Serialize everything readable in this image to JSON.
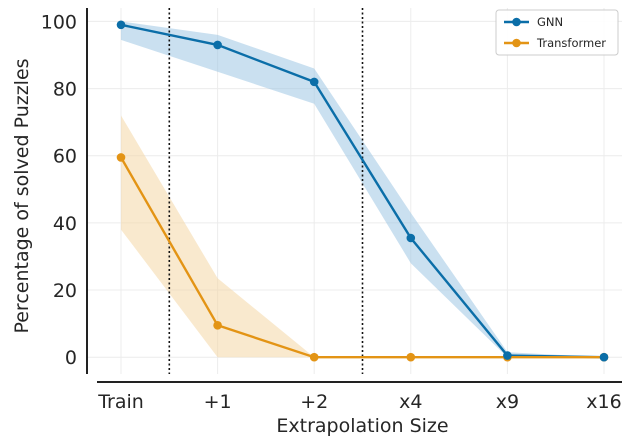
{
  "chart_data": {
    "type": "line",
    "categories": [
      "Train",
      "+1",
      "+2",
      "x4",
      "x9",
      "x16"
    ],
    "xlabel": "Extrapolation Size",
    "ylabel": "Percentage of solved Puzzles",
    "ylim": [
      -5,
      104
    ],
    "yticks": [
      0,
      20,
      40,
      60,
      80,
      100
    ],
    "grid": true,
    "legend_position": "top-right",
    "vlines_at": [
      0.5,
      2.5
    ],
    "series": [
      {
        "name": "GNN",
        "color": "#0b6ea8",
        "band_color": "#9ec7e3",
        "values": [
          99,
          93,
          82,
          35.5,
          0.5,
          0
        ],
        "lower": [
          94.5,
          85,
          75.5,
          28,
          0,
          0
        ],
        "upper": [
          100,
          96,
          86,
          43,
          1.5,
          0
        ]
      },
      {
        "name": "Transformer",
        "color": "#e39415",
        "band_color": "#f4d7a6",
        "values": [
          59.5,
          9.5,
          0,
          0,
          0,
          0
        ],
        "lower": [
          38,
          0,
          0,
          0,
          0,
          0
        ],
        "upper": [
          72,
          23.5,
          0,
          0,
          0,
          0
        ]
      }
    ]
  }
}
